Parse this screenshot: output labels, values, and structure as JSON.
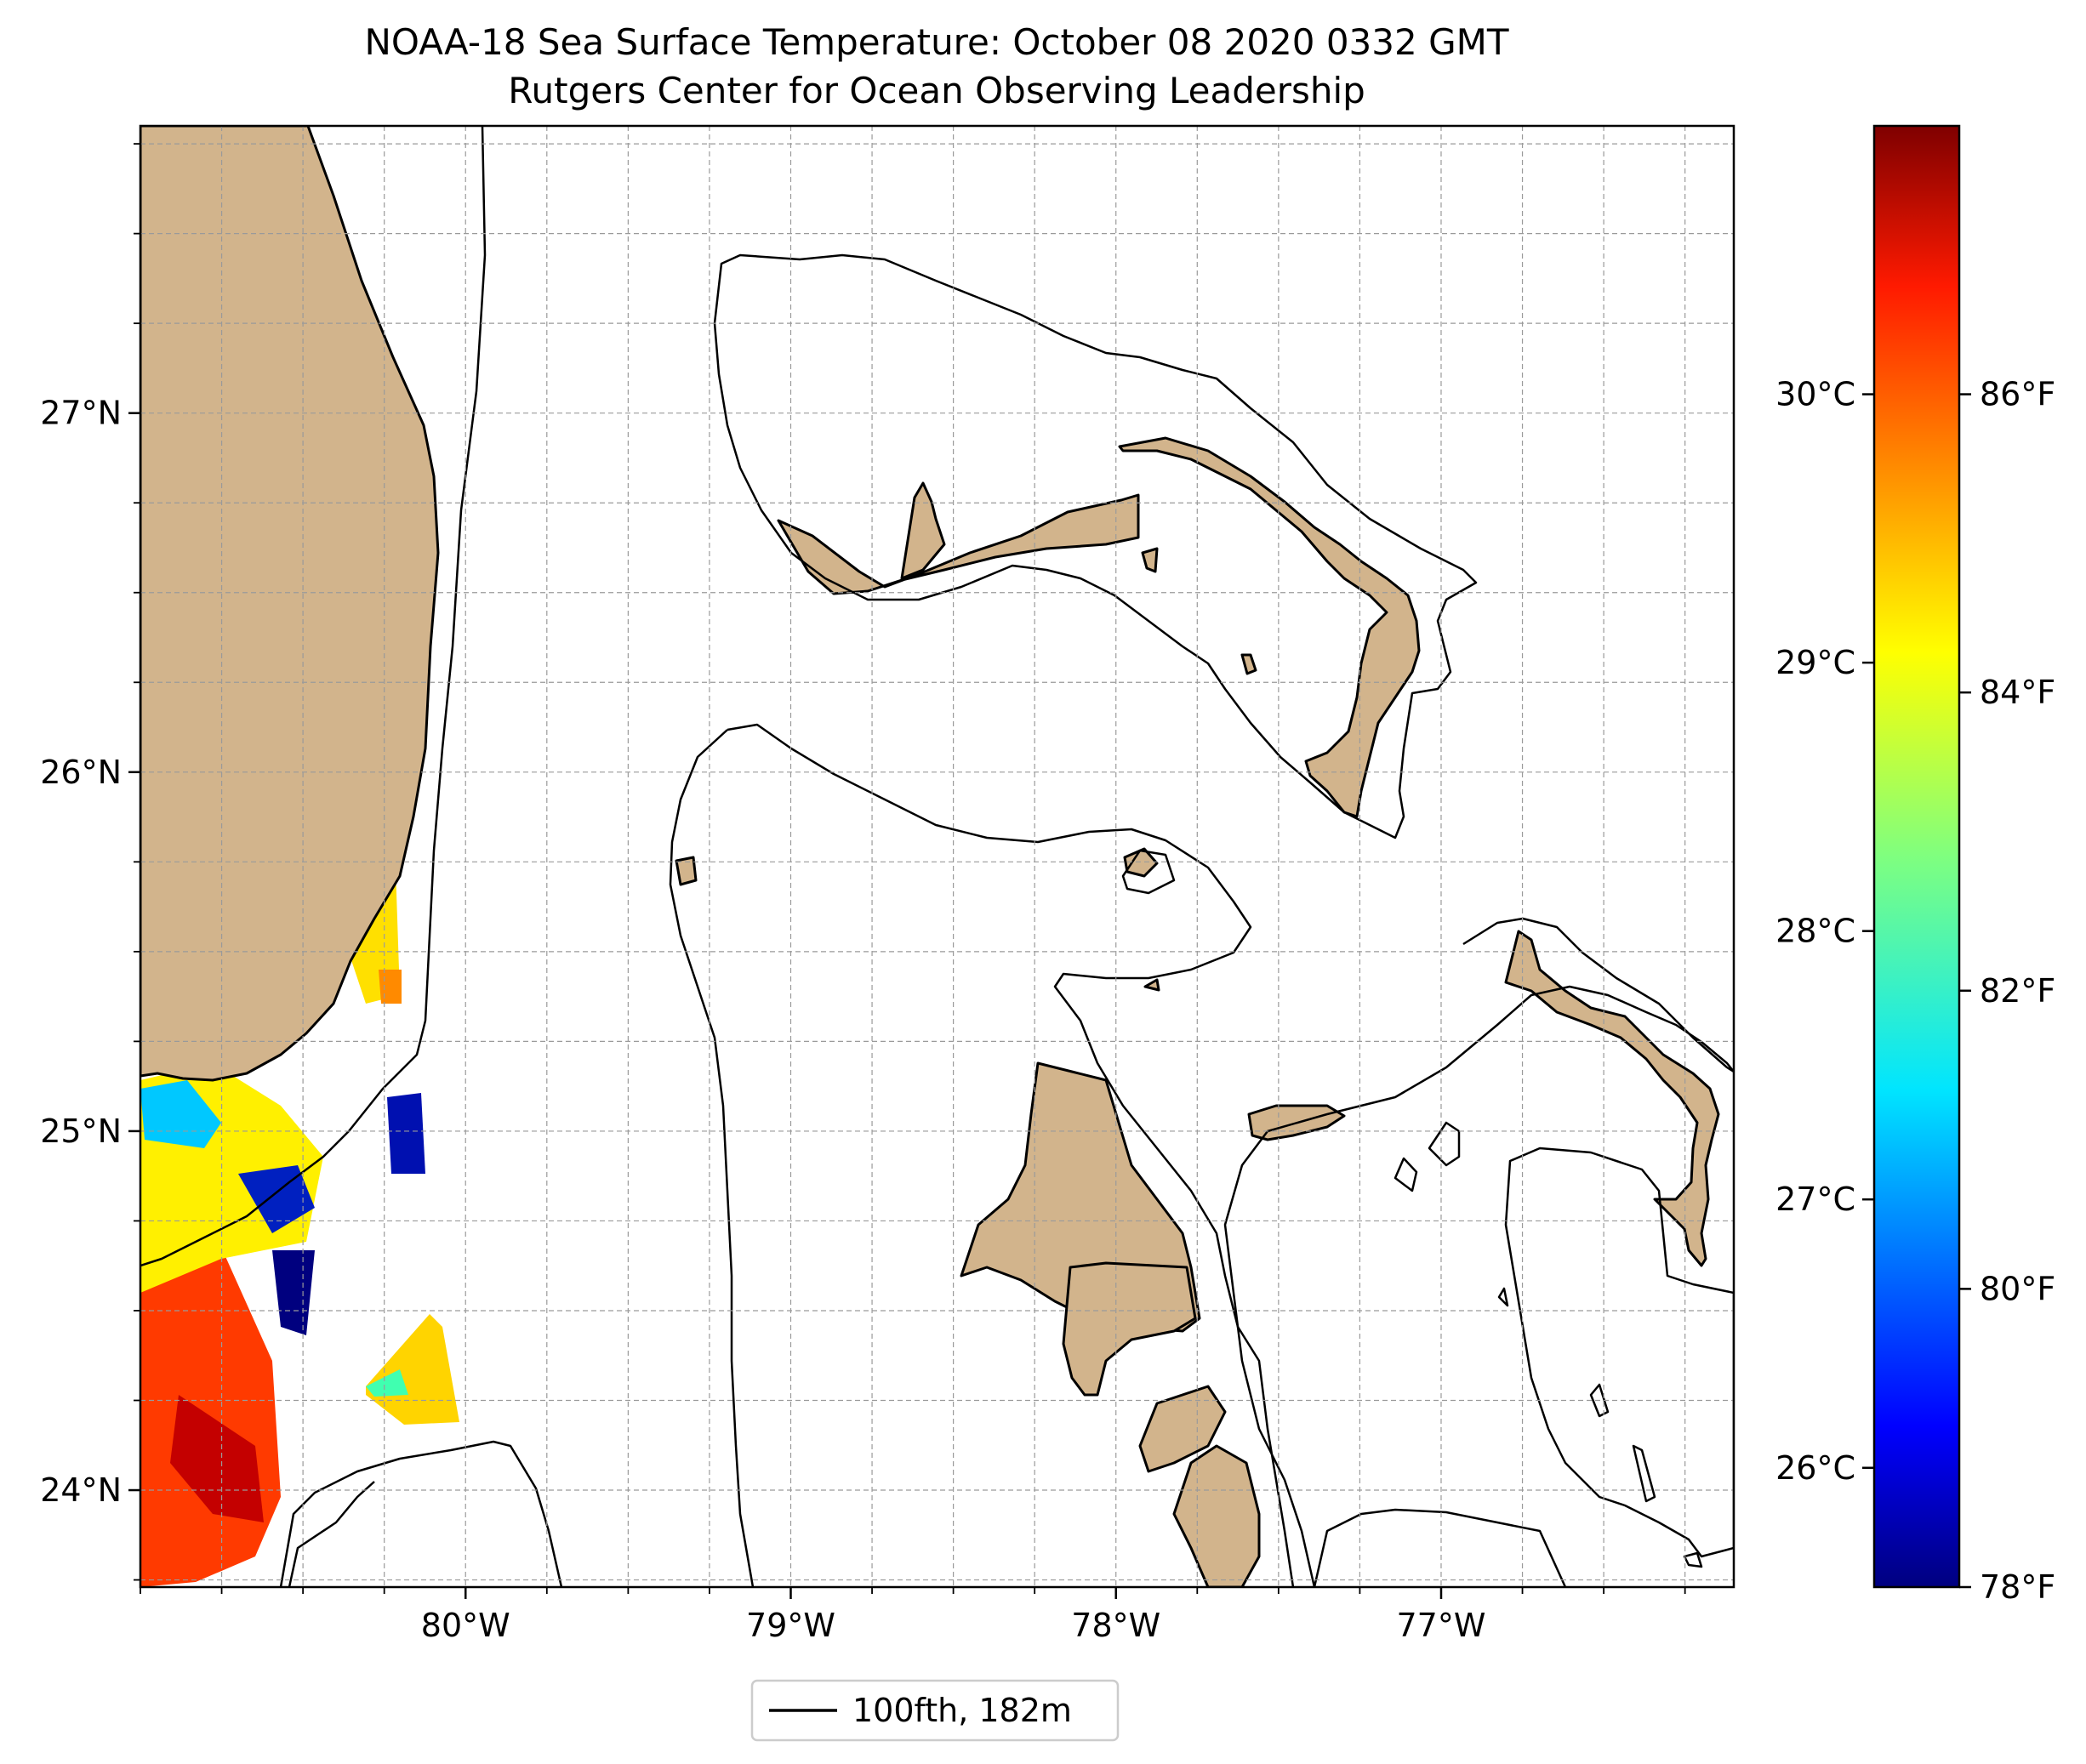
{
  "title": {
    "line1": "NOAA-18 Sea Surface Temperature: October 08 2020 0332 GMT",
    "line2": "Rutgers Center for Ocean Observing Leadership"
  },
  "map": {
    "lon_range": [
      -81.0,
      -76.1
    ],
    "lat_range": [
      23.73,
      27.8
    ],
    "lon_ticks": [
      {
        "value": -80,
        "label": "80°W"
      },
      {
        "value": -79,
        "label": "79°W"
      },
      {
        "value": -78,
        "label": "78°W"
      },
      {
        "value": -77,
        "label": "77°W"
      }
    ],
    "lat_ticks": [
      {
        "value": 24,
        "label": "24°N"
      },
      {
        "value": 25,
        "label": "25°N"
      },
      {
        "value": 26,
        "label": "26°N"
      },
      {
        "value": 27,
        "label": "27°N"
      }
    ],
    "gridlines": true,
    "land_color": "#d2b48c",
    "legend": {
      "label": "100fth, 182m",
      "placement": "bottom-center"
    }
  },
  "colorbar": {
    "colormap": "jet",
    "celsius_ticks": [
      {
        "value": 26,
        "label": "26°C"
      },
      {
        "value": 27,
        "label": "27°C"
      },
      {
        "value": 28,
        "label": "28°C"
      },
      {
        "value": 29,
        "label": "29°C"
      },
      {
        "value": 30,
        "label": "30°C"
      }
    ],
    "fahrenheit_ticks": [
      {
        "value": 78,
        "label": "78°F"
      },
      {
        "value": 80,
        "label": "80°F"
      },
      {
        "value": 82,
        "label": "82°F"
      },
      {
        "value": 84,
        "label": "84°F"
      },
      {
        "value": 86,
        "label": "86°F"
      }
    ],
    "range_f": [
      78,
      87.8
    ]
  }
}
